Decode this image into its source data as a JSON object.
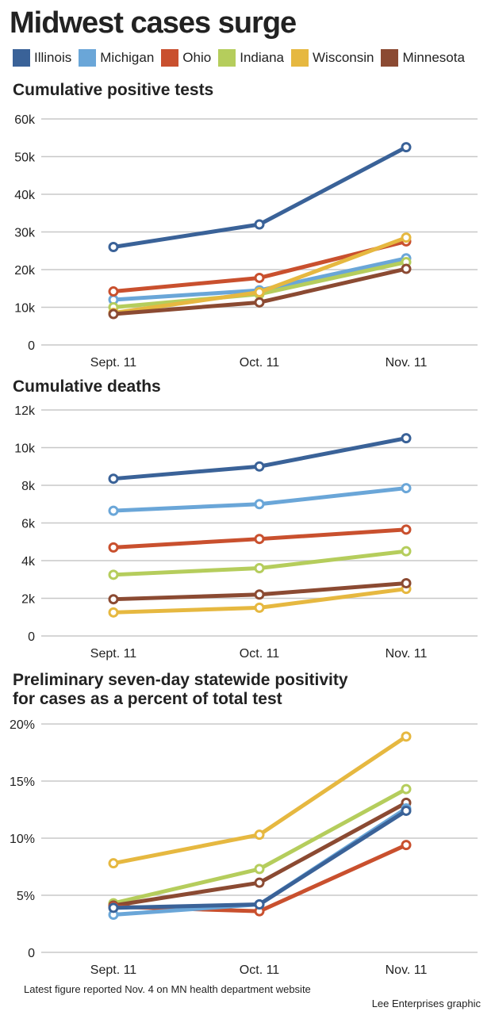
{
  "title": "Midwest cases surge",
  "legend": [
    {
      "name": "Illinois",
      "color": "#3a6298"
    },
    {
      "name": "Michigan",
      "color": "#6aa6d8"
    },
    {
      "name": "Ohio",
      "color": "#c9502e"
    },
    {
      "name": "Indiana",
      "color": "#b5cd5c"
    },
    {
      "name": "Wisconsin",
      "color": "#e6b840"
    },
    {
      "name": "Minnesota",
      "color": "#8b4a32"
    }
  ],
  "chart_data": [
    {
      "type": "line",
      "title": "Cumulative positive tests",
      "categories": [
        "Sept. 11",
        "Oct. 11",
        "Nov. 11"
      ],
      "y_ticks": [
        0,
        10000,
        20000,
        30000,
        40000,
        50000,
        60000
      ],
      "y_tick_labels": [
        "0",
        "10k",
        "20k",
        "30k",
        "40k",
        "50k",
        "60k"
      ],
      "ylim": [
        0,
        60000
      ],
      "series": [
        {
          "name": "Illinois",
          "values": [
            26000,
            32000,
            52500
          ]
        },
        {
          "name": "Michigan",
          "values": [
            12000,
            14500,
            23000
          ]
        },
        {
          "name": "Ohio",
          "values": [
            14200,
            17800,
            27500
          ]
        },
        {
          "name": "Indiana",
          "values": [
            10000,
            13500,
            22000
          ]
        },
        {
          "name": "Wisconsin",
          "values": [
            8500,
            14000,
            28500
          ]
        },
        {
          "name": "Minnesota",
          "values": [
            8200,
            11300,
            20200
          ]
        }
      ]
    },
    {
      "type": "line",
      "title": "Cumulative deaths",
      "categories": [
        "Sept. 11",
        "Oct. 11",
        "Nov. 11"
      ],
      "y_ticks": [
        0,
        2000,
        4000,
        6000,
        8000,
        10000,
        12000
      ],
      "y_tick_labels": [
        "0",
        "2k",
        "4k",
        "6k",
        "8k",
        "10k",
        "12k"
      ],
      "ylim": [
        0,
        12000
      ],
      "series": [
        {
          "name": "Illinois",
          "values": [
            8350,
            9000,
            10500
          ]
        },
        {
          "name": "Michigan",
          "values": [
            6650,
            7000,
            7850
          ]
        },
        {
          "name": "Ohio",
          "values": [
            4700,
            5150,
            5650
          ]
        },
        {
          "name": "Indiana",
          "values": [
            3250,
            3600,
            4500
          ]
        },
        {
          "name": "Wisconsin",
          "values": [
            1250,
            1500,
            2500
          ]
        },
        {
          "name": "Minnesota",
          "values": [
            1950,
            2200,
            2800
          ]
        }
      ]
    },
    {
      "type": "line",
      "title": "Preliminary seven-day statewide positivity for cases as a percent of total test",
      "title_lines": [
        "Preliminary seven-day statewide positivity",
        "for cases as a percent of total test"
      ],
      "categories": [
        "Sept. 11",
        "Oct. 11",
        "Nov. 11"
      ],
      "y_ticks": [
        0,
        5,
        10,
        15,
        20
      ],
      "y_tick_labels": [
        "0",
        "5%",
        "10%",
        "15%",
        "20%"
      ],
      "ylim": [
        0,
        20
      ],
      "series": [
        {
          "name": "Wisconsin",
          "values": [
            7.8,
            10.3,
            18.9
          ]
        },
        {
          "name": "Indiana",
          "values": [
            4.3,
            7.3,
            14.3
          ]
        },
        {
          "name": "Minnesota",
          "values": [
            4.1,
            6.1,
            13.1
          ]
        },
        {
          "name": "Ohio",
          "values": [
            4.0,
            3.6,
            9.4
          ]
        },
        {
          "name": "Michigan",
          "values": [
            3.3,
            4.2,
            12.6
          ]
        },
        {
          "name": "Illinois",
          "values": [
            3.9,
            4.2,
            12.4
          ]
        }
      ]
    }
  ],
  "footnote": "Latest figure reported Nov. 4 on MN health department website",
  "credit": "Lee Enterprises graphic"
}
